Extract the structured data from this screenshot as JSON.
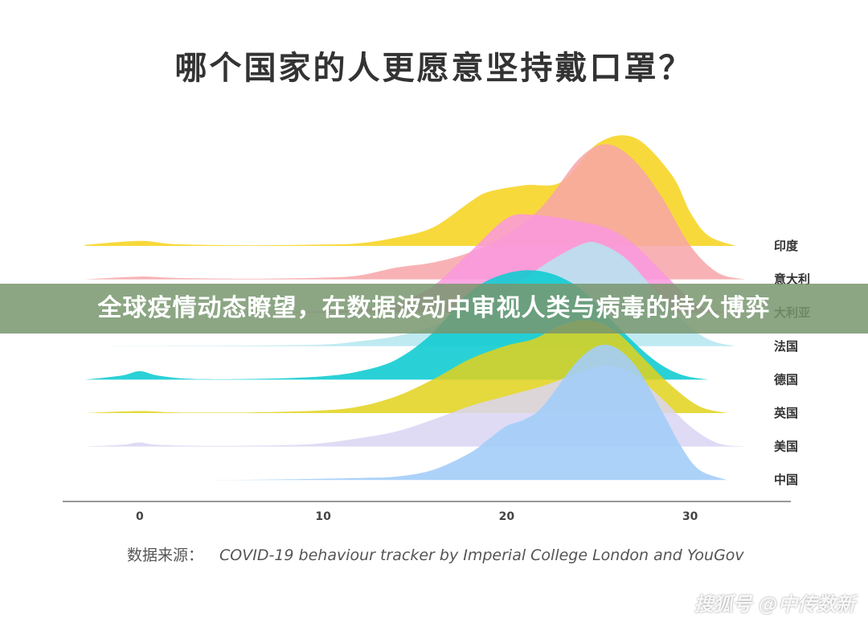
{
  "chart_data": {
    "type": "area",
    "title": "哪个国家的人更愿意坚持戴口罩？",
    "source_label": "数据来源：",
    "source": "COVID-19 behaviour tracker by Imperial College London and YouGov",
    "xlim": [
      -3.5,
      34
    ],
    "x_ticks": [
      0,
      10,
      20,
      30
    ],
    "grid": false,
    "legend": "none",
    "series": [
      {
        "name": "印度",
        "color": "#F7D21A",
        "opacity": 0.85,
        "points": [
          [
            -3,
            0.03
          ],
          [
            0,
            0.15
          ],
          [
            2,
            0.05
          ],
          [
            6,
            0.02
          ],
          [
            10,
            0.04
          ],
          [
            12,
            0.08
          ],
          [
            14,
            0.25
          ],
          [
            16,
            0.55
          ],
          [
            18,
            1.3
          ],
          [
            19,
            1.6
          ],
          [
            21,
            1.8
          ],
          [
            23,
            1.9
          ],
          [
            25,
            3.05
          ],
          [
            27,
            3.2
          ],
          [
            29,
            2.1
          ],
          [
            30,
            1.0
          ],
          [
            31,
            0.3
          ],
          [
            32.5,
            0.0
          ]
        ]
      },
      {
        "name": "意大利",
        "color": "#F7A5A8",
        "opacity": 0.85,
        "points": [
          [
            -3,
            0.0
          ],
          [
            0,
            0.08
          ],
          [
            2,
            0.04
          ],
          [
            6,
            0.02
          ],
          [
            10,
            0.05
          ],
          [
            12,
            0.12
          ],
          [
            14,
            0.35
          ],
          [
            16,
            0.5
          ],
          [
            18,
            0.8
          ],
          [
            20,
            1.3
          ],
          [
            22,
            2.2
          ],
          [
            24,
            3.6
          ],
          [
            25.5,
            4.0
          ],
          [
            27,
            3.5
          ],
          [
            28.5,
            2.4
          ],
          [
            30,
            1.0
          ],
          [
            31.5,
            0.2
          ],
          [
            33,
            0.0
          ]
        ]
      },
      {
        "name": "大利亚",
        "color": "#FA98DF",
        "opacity": 0.85,
        "points": [
          [
            -3,
            0.0
          ],
          [
            4,
            0.0
          ],
          [
            8,
            0.02
          ],
          [
            12,
            0.1
          ],
          [
            14,
            0.3
          ],
          [
            16,
            0.8
          ],
          [
            18,
            1.8
          ],
          [
            20,
            2.8
          ],
          [
            21.5,
            2.9
          ],
          [
            23.5,
            2.75
          ],
          [
            25.5,
            2.5
          ],
          [
            27,
            2.0
          ],
          [
            28.5,
            1.2
          ],
          [
            30,
            0.4
          ],
          [
            31,
            0.1
          ],
          [
            32.5,
            0.0
          ]
        ]
      },
      {
        "name": "法国",
        "color": "#B4E6F0",
        "opacity": 0.85,
        "points": [
          [
            -3,
            0.0
          ],
          [
            6,
            0.02
          ],
          [
            10,
            0.05
          ],
          [
            12,
            0.15
          ],
          [
            14,
            0.3
          ],
          [
            16,
            0.6
          ],
          [
            18,
            1.1
          ],
          [
            20,
            1.6
          ],
          [
            22,
            2.4
          ],
          [
            24,
            3.0
          ],
          [
            25,
            3.05
          ],
          [
            26.5,
            2.6
          ],
          [
            28,
            1.7
          ],
          [
            29.5,
            0.8
          ],
          [
            31,
            0.2
          ],
          [
            32.5,
            0.0
          ]
        ]
      },
      {
        "name": "德国",
        "color": "#12CCD2",
        "opacity": 0.9,
        "points": [
          [
            -3,
            0.0
          ],
          [
            -1,
            0.12
          ],
          [
            0,
            0.25
          ],
          [
            1,
            0.12
          ],
          [
            3,
            0.02
          ],
          [
            7,
            0.03
          ],
          [
            10,
            0.1
          ],
          [
            12,
            0.25
          ],
          [
            14,
            0.6
          ],
          [
            16,
            1.4
          ],
          [
            18,
            2.6
          ],
          [
            20,
            3.15
          ],
          [
            22,
            3.2
          ],
          [
            24,
            2.7
          ],
          [
            26,
            1.6
          ],
          [
            28,
            0.6
          ],
          [
            29.5,
            0.15
          ],
          [
            31,
            0.0
          ]
        ]
      },
      {
        "name": "英国",
        "color": "#E2D21B",
        "opacity": 0.85,
        "points": [
          [
            -3,
            0.0
          ],
          [
            0,
            0.06
          ],
          [
            2,
            0.02
          ],
          [
            6,
            0.02
          ],
          [
            10,
            0.08
          ],
          [
            12,
            0.2
          ],
          [
            14,
            0.5
          ],
          [
            16,
            1.0
          ],
          [
            18,
            1.6
          ],
          [
            20,
            2.0
          ],
          [
            21.5,
            2.2
          ],
          [
            23,
            2.6
          ],
          [
            24.5,
            2.75
          ],
          [
            26,
            2.4
          ],
          [
            27.5,
            1.6
          ],
          [
            29,
            0.8
          ],
          [
            30.5,
            0.2
          ],
          [
            32,
            0.0
          ]
        ]
      },
      {
        "name": "美国",
        "color": "#D9D5F3",
        "opacity": 0.85,
        "points": [
          [
            -3,
            0.0
          ],
          [
            -1,
            0.05
          ],
          [
            0,
            0.12
          ],
          [
            1,
            0.05
          ],
          [
            4,
            0.02
          ],
          [
            8,
            0.04
          ],
          [
            10,
            0.1
          ],
          [
            12,
            0.25
          ],
          [
            14,
            0.45
          ],
          [
            16,
            0.8
          ],
          [
            18,
            1.2
          ],
          [
            20,
            1.5
          ],
          [
            22,
            1.8
          ],
          [
            24,
            2.2
          ],
          [
            25.5,
            2.4
          ],
          [
            27,
            2.1
          ],
          [
            28.5,
            1.4
          ],
          [
            30,
            0.6
          ],
          [
            31.5,
            0.1
          ],
          [
            33,
            0.0
          ]
        ]
      },
      {
        "name": "中国",
        "color": "#A3CDF8",
        "opacity": 0.9,
        "points": [
          [
            -3,
            0.0
          ],
          [
            4,
            0.0
          ],
          [
            8,
            0.02
          ],
          [
            12,
            0.06
          ],
          [
            14,
            0.1
          ],
          [
            16,
            0.3
          ],
          [
            18,
            0.8
          ],
          [
            19,
            1.2
          ],
          [
            20,
            1.6
          ],
          [
            21,
            1.8
          ],
          [
            22,
            2.2
          ],
          [
            24,
            3.6
          ],
          [
            25.5,
            4.0
          ],
          [
            27,
            3.4
          ],
          [
            28.5,
            2.0
          ],
          [
            29.5,
            1.0
          ],
          [
            30.5,
            0.3
          ],
          [
            32,
            0.0
          ]
        ]
      }
    ]
  },
  "overlay": {
    "text": "全球疫情动态瞭望，在数据波动中审视人类与病毒的持久博弈"
  },
  "watermark": "搜狐号 @中传数新"
}
